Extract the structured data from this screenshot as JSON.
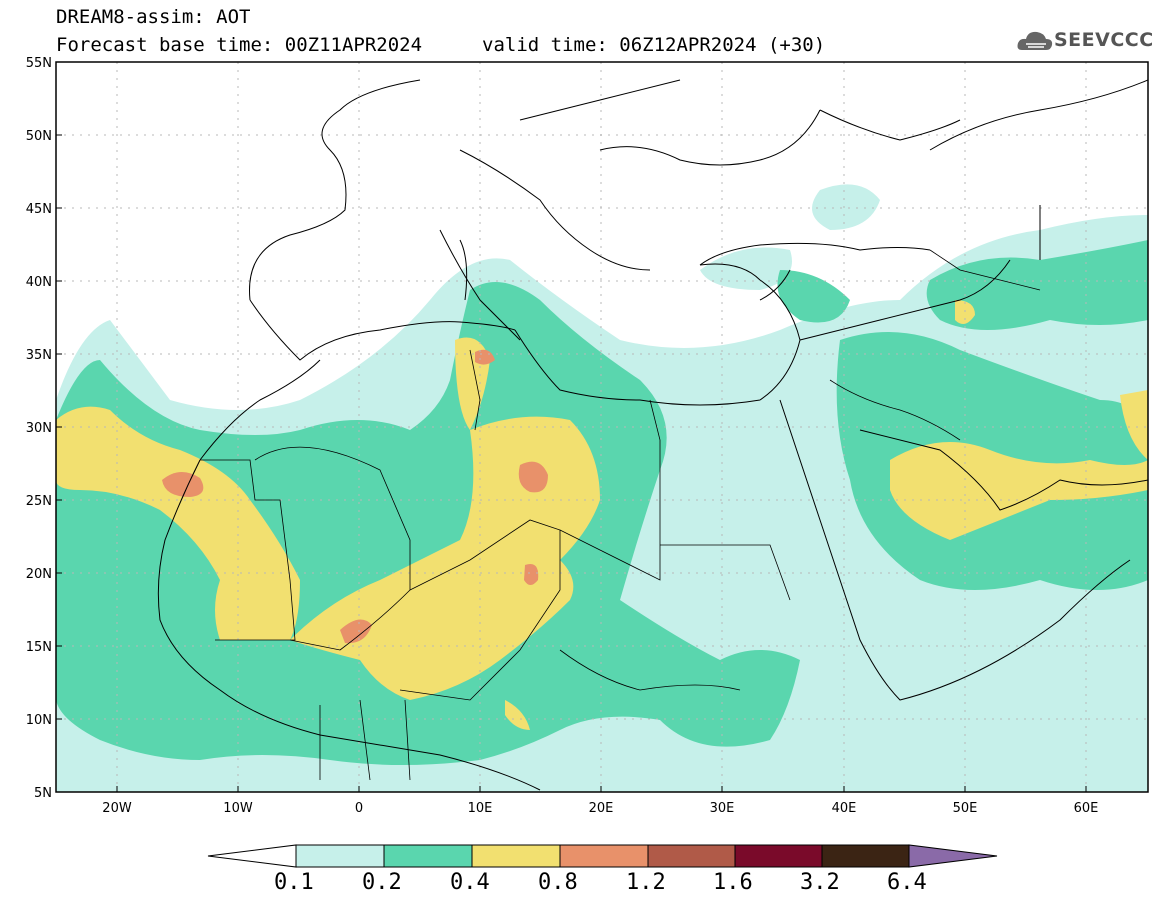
{
  "header": {
    "line1": "DREAM8-assim: AOT",
    "base_time": "Forecast base time: 00Z11APR2024",
    "valid_time": "valid time: 06Z12APR2024 (+30)"
  },
  "logo": {
    "text": "SEEVCCC",
    "icon": "cloud-logo-icon"
  },
  "axes": {
    "lat_labels": [
      "55N",
      "50N",
      "45N",
      "40N",
      "35N",
      "30N",
      "25N",
      "20N",
      "15N",
      "10N",
      "5N"
    ],
    "lon_labels": [
      "20W",
      "10W",
      "0",
      "10E",
      "20E",
      "30E",
      "40E",
      "50E",
      "60E"
    ]
  },
  "colorbar": {
    "labels": [
      "0.1",
      "0.2",
      "0.4",
      "0.8",
      "1.2",
      "1.6",
      "3.2",
      "6.4"
    ],
    "colors": [
      "#ffffff",
      "#c6f0ea",
      "#5ad6ae",
      "#f2e070",
      "#e8916a",
      "#b05a48",
      "#7a0a2a",
      "#3b2414",
      "#8a6aa8"
    ]
  },
  "colors": {
    "very_light": "#c6f0ea",
    "teal": "#5ad6ae",
    "yellow": "#f2e070",
    "orange": "#e8916a"
  }
}
